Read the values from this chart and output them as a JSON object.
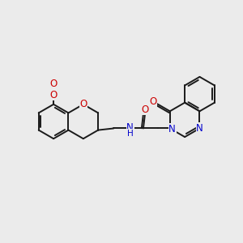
{
  "bg_color": "#ebebeb",
  "bond_color": "#1a1a1a",
  "N_color": "#0000cc",
  "O_color": "#cc0000",
  "line_width": 1.4,
  "font_size": 8.5,
  "figsize": [
    3.0,
    3.0
  ],
  "dpi": 100,
  "xlim": [
    0,
    10
  ],
  "ylim": [
    0,
    10
  ]
}
